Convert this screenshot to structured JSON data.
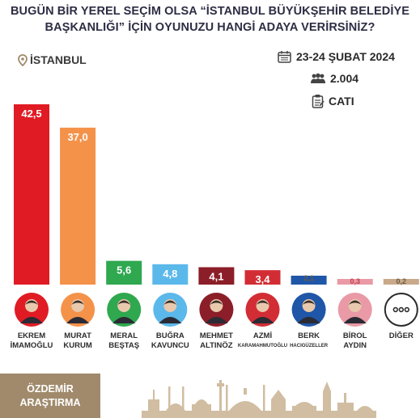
{
  "title": {
    "line1": "BUGÜN BİR YEREL SEÇİM OLSA “İSTANBUL BÜYÜKŞEHİR BELEDİYE",
    "line2": "BAŞKANLIĞI” İÇİN OYUNUZU HANGİ ADAYA VERİRSİNİZ?"
  },
  "location": "İSTANBUL",
  "meta": {
    "date": "23-24 ŞUBAT 2024",
    "sample": "2.004",
    "method": "CATI"
  },
  "brand": {
    "line1": "ÖZDEMİR",
    "line2": "ARAŞTIRMA"
  },
  "colors": {
    "imamoglu": "#e01b24",
    "kurum": "#f4924a",
    "bestas": "#2fa84f",
    "kavuncu": "#5bb8ea",
    "altinoz": "#8b1e28",
    "karamahmutoglu": "#d22d35",
    "hacieguzeller": "#1f56a8",
    "aydin": "#e99aa6",
    "diger": "#c9a98a",
    "title": "#2d2d44",
    "brand": "#a08a6b"
  },
  "chart_data": {
    "type": "bar",
    "categories": [
      "EKREM İMAMOĞLU",
      "MURAT KURUM",
      "MERAL BEŞTAŞ",
      "BUĞRA KAVUNCU",
      "MEHMET ALTINÖZ",
      "AZMİ KARAMAHMUTOĞLU",
      "BERK HACIGÜZELLER",
      "BİROL AYDIN",
      "DİĞER"
    ],
    "values": [
      42.5,
      37.0,
      5.6,
      4.8,
      4.1,
      3.4,
      2.1,
      0.3,
      0.2
    ],
    "value_labels": [
      "42,5",
      "37,0",
      "5,6",
      "4,8",
      "4,1",
      "3,4",
      "2,1",
      "0,3",
      "0,2"
    ],
    "ylim": [
      0,
      42.5
    ],
    "grid": false,
    "legend": "none"
  },
  "candidates": [
    {
      "line1": "EKREM",
      "line2": "İMAMOĞLU",
      "line2_small": false
    },
    {
      "line1": "MURAT",
      "line2": "KURUM",
      "line2_small": false
    },
    {
      "line1": "MERAL",
      "line2": "BEŞTAŞ",
      "line2_small": false
    },
    {
      "line1": "BUĞRA",
      "line2": "KAVUNCU",
      "line2_small": false
    },
    {
      "line1": "MEHMET",
      "line2": "ALTINÖZ",
      "line2_small": false
    },
    {
      "line1": "AZMİ",
      "line2": "KARAMAHMUTOĞLU",
      "line2_small": true
    },
    {
      "line1": "BERK",
      "line2": "HACIGÜZELLER",
      "line2_small": true
    },
    {
      "line1": "BİROL",
      "line2": "AYDIN",
      "line2_small": false
    },
    {
      "line1": "DİĞER",
      "line2": "",
      "line2_small": false
    }
  ],
  "icons": {
    "location": "map-pin-icon",
    "date": "calendar-icon",
    "sample": "people-icon",
    "method": "clipboard-icon",
    "other": "more-dots-icon"
  }
}
